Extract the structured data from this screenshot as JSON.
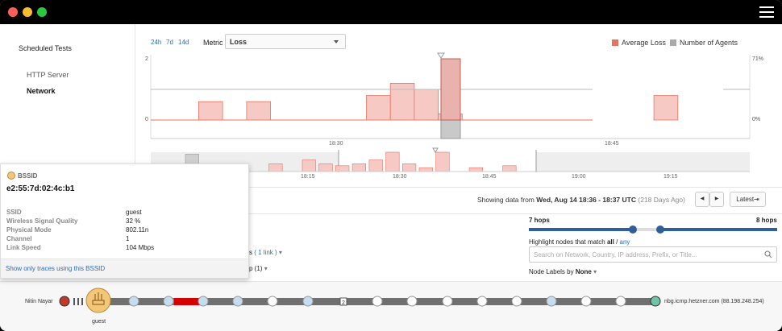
{
  "window": {
    "close_color": "#ff5f57",
    "minimize_color": "#febc2e",
    "maximize_color": "#28c840",
    "menu_icon": "hamburger-menu-icon"
  },
  "sidebar": {
    "title": "Scheduled Tests",
    "items": [
      {
        "label": "HTTP Server",
        "active": false
      },
      {
        "label": "Network",
        "active": true
      }
    ]
  },
  "toolbar": {
    "ranges": [
      "24h",
      "7d",
      "14d"
    ],
    "metric_label": "Metric",
    "metric_value": "Loss"
  },
  "legend": [
    {
      "label": "Average Loss",
      "color": "#e8735e"
    },
    {
      "label": "Number of Agents",
      "color": "#aaaaaa"
    }
  ],
  "chart_data": {
    "type": "bar",
    "left_axis_ticks": [
      "2",
      "0"
    ],
    "right_axis_ticks": [
      "71%",
      "0%"
    ],
    "main_time_ticks": [
      "18:30",
      "18:45"
    ],
    "overview_time_ticks": [
      "18:15",
      "18:30",
      "18:45",
      "19:00",
      "19:15"
    ],
    "ylim": [
      0,
      2
    ],
    "series": [
      {
        "values": [
          0,
          0,
          0.6,
          0,
          0.6,
          0,
          0,
          0,
          0,
          0.8,
          1.2,
          1,
          0.2,
          2,
          0,
          0,
          0,
          0,
          0,
          0,
          0,
          0.8,
          0,
          0,
          0
        ]
      }
    ],
    "series_colors": {
      "loss": "#f7c9c4",
      "loss_line": "#e8735e",
      "agents": "#cccccc"
    },
    "agents_line_level": 1,
    "overview_values": [
      0.9,
      0.3,
      0,
      0,
      0,
      0.4,
      0,
      0.6,
      0.4,
      0.3,
      0.4,
      0.6,
      1,
      0.4,
      0.2,
      1,
      0,
      0.2,
      0,
      0.3,
      0
    ]
  },
  "popup": {
    "header": "BSSID",
    "icon": "wifi-router-icon",
    "mac": "e2:55:7d:02:4c:b1",
    "rows": [
      {
        "key": "SSID",
        "value": "guest"
      },
      {
        "key": "Wireless Signal Quality",
        "value": "32 %"
      },
      {
        "key": "Physical Mode",
        "value": "802.11n"
      },
      {
        "key": "Channel",
        "value": "1"
      },
      {
        "key": "Link Speed",
        "value": "104 Mbps"
      }
    ],
    "footer_link": "Show only traces using this BSSID"
  },
  "data_range": {
    "prefix": "Showing data from ",
    "range": "Wed, Aug 14 18:36 - 18:37 UTC",
    "suffix": " (218 Days Ago)",
    "prev": "◀",
    "next": "▶",
    "latest": "Latest⇥"
  },
  "path_controls": {
    "hops_min": "7 hops",
    "hops_max": "8 hops",
    "highlight_prefix": "Highlight nodes that match ",
    "highlight_all": "all",
    "highlight_sep": " / ",
    "highlight_any": "any",
    "search_placeholder": "Search on Network, Country, IP address, Prefix, or Title...",
    "node_labels_prefix": "Node Labels by ",
    "node_labels_value": "None",
    "links_partial": "s",
    "links_link": "( 1 link )",
    "group_partial": "p (1)"
  },
  "path": {
    "source_label": "Nitin Nayar",
    "router_label": "guest",
    "hop_badge": "2",
    "destination_label": "nbg.icmp.hetzner.com",
    "destination_ip": "(88.198.248.254)"
  }
}
